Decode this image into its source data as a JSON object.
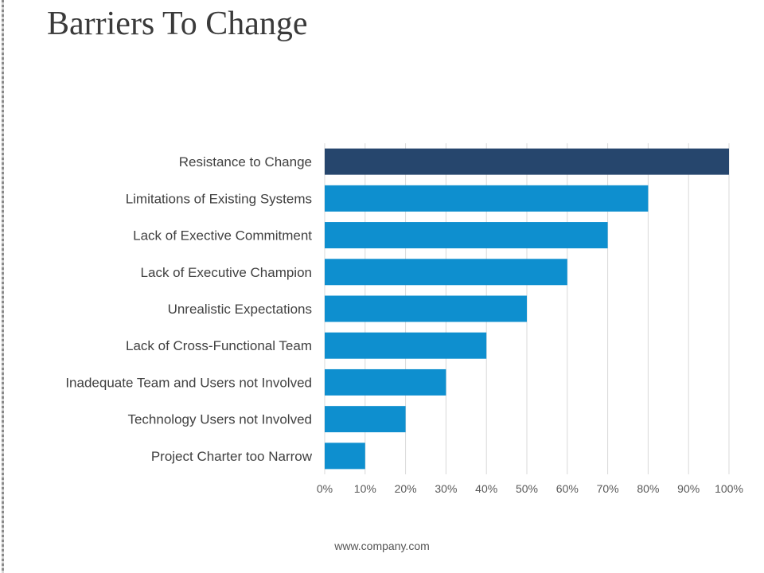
{
  "slide": {
    "title": "Barriers To Change",
    "footer": "www.company.com"
  },
  "colors": {
    "highlight_bar": "#26466d",
    "bar": "#0e8fcf",
    "gridline": "#d9d9d9"
  },
  "chart_data": {
    "type": "bar",
    "orientation": "horizontal",
    "categories": [
      "Resistance to Change",
      "Limitations of Existing Systems",
      "Lack of Exective Commitment",
      "Lack of Executive Champion",
      "Unrealistic Expectations",
      "Lack of Cross-Functional Team",
      "Inadequate Team and Users not Involved",
      "Technology Users not Involved",
      "Project Charter too Narrow"
    ],
    "values": [
      100,
      80,
      70,
      60,
      50,
      40,
      30,
      20,
      10
    ],
    "highlighted_category": "Resistance to Change",
    "xlim": [
      0,
      100
    ],
    "x_ticks": [
      "0%",
      "10%",
      "20%",
      "30%",
      "40%",
      "50%",
      "60%",
      "70%",
      "80%",
      "90%",
      "100%"
    ],
    "grid": true,
    "legend": "none",
    "title": "",
    "xlabel": "",
    "ylabel": ""
  }
}
